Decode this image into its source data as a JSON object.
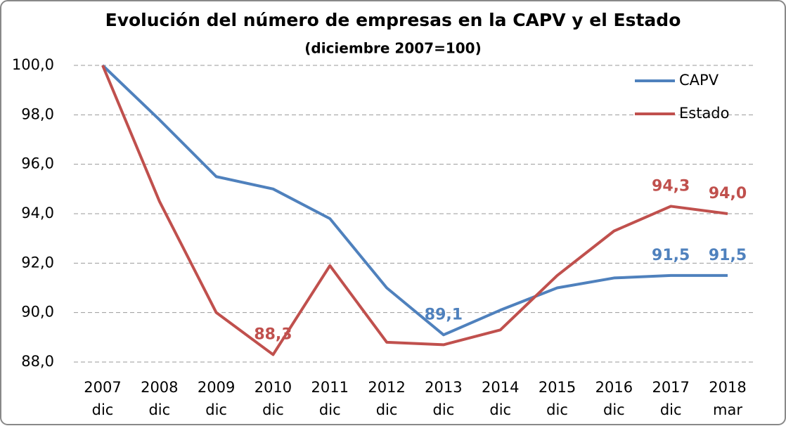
{
  "chart_data": {
    "type": "line",
    "title": "Evolución del número de empresas en la CAPV y el Estado",
    "subtitle": "(diciembre 2007=100)",
    "categories": [
      [
        "2007",
        "dic"
      ],
      [
        "2008",
        "dic"
      ],
      [
        "2009",
        "dic"
      ],
      [
        "2010",
        "dic"
      ],
      [
        "2011",
        "dic"
      ],
      [
        "2012",
        "dic"
      ],
      [
        "2013",
        "dic"
      ],
      [
        "2014",
        "dic"
      ],
      [
        "2015",
        "dic"
      ],
      [
        "2016",
        "dic"
      ],
      [
        "2017",
        "dic"
      ],
      [
        "2018",
        "mar"
      ]
    ],
    "series": [
      {
        "name": "CAPV",
        "color": "#4f81bd",
        "values": [
          100,
          97.8,
          95.5,
          95.0,
          93.8,
          91.0,
          89.1,
          90.1,
          91.0,
          91.4,
          91.5,
          91.5
        ],
        "value_labels": [
          null,
          null,
          null,
          null,
          null,
          null,
          "89,1",
          null,
          null,
          null,
          "91,5",
          "91,5"
        ]
      },
      {
        "name": "Estado",
        "color": "#c0504d",
        "values": [
          100,
          94.5,
          90.0,
          88.3,
          91.9,
          88.8,
          88.7,
          89.3,
          91.5,
          93.3,
          94.3,
          94.0
        ],
        "value_labels": [
          null,
          null,
          null,
          "88,3",
          null,
          null,
          null,
          null,
          null,
          null,
          "94,3",
          "94,0"
        ]
      }
    ],
    "ylim": [
      88,
      100
    ],
    "yticks": [
      {
        "value": 88,
        "label": "88,0"
      },
      {
        "value": 90,
        "label": "90,0"
      },
      {
        "value": 92,
        "label": "92,0"
      },
      {
        "value": 94,
        "label": "94,0"
      },
      {
        "value": 96,
        "label": "96,0"
      },
      {
        "value": 98,
        "label": "98,0"
      },
      {
        "value": 100,
        "label": "100,0"
      }
    ],
    "grid": true,
    "legend": "upper right"
  }
}
